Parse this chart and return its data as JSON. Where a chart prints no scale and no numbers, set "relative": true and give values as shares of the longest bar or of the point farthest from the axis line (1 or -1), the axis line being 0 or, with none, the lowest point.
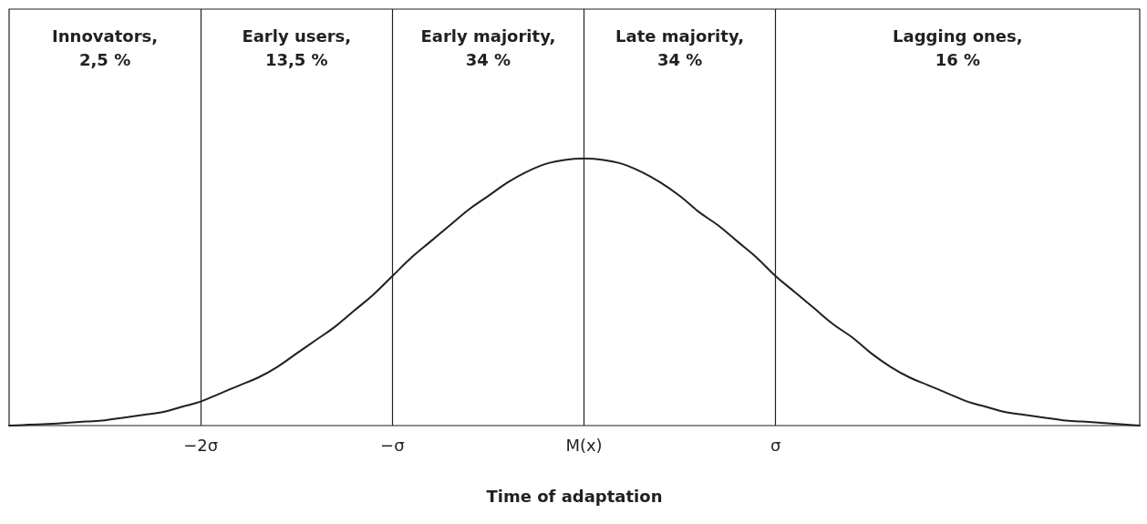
{
  "chart_data": {
    "type": "line",
    "xlabel": "Time of adaptation",
    "relative": true,
    "marker": "none",
    "line_style": "solid",
    "categories": [
      null,
      null,
      null,
      null,
      null,
      null,
      null,
      null,
      null,
      null,
      "−2σ",
      null,
      null,
      null,
      null,
      null,
      null,
      null,
      null,
      null,
      "−σ",
      null,
      null,
      null,
      null,
      null,
      null,
      null,
      null,
      null,
      "M(x)",
      null,
      null,
      null,
      null,
      null,
      null,
      null,
      null,
      null,
      "σ",
      null,
      null,
      null,
      null,
      null,
      null,
      null,
      null,
      null,
      null,
      null,
      null,
      null,
      null,
      null,
      null,
      null,
      null,
      null
    ],
    "series": [
      {
        "color": "#231f20",
        "values": [
          0,
          0.003,
          0.006,
          0.01,
          0.015,
          0.02,
          0.03,
          0.04,
          0.05,
          0.07,
          0.09,
          0.12,
          0.15,
          0.18,
          0.22,
          0.27,
          0.32,
          0.37,
          0.43,
          0.49,
          0.56,
          0.63,
          0.69,
          0.75,
          0.81,
          0.86,
          0.91,
          0.95,
          0.98,
          0.995,
          1,
          0.995,
          0.98,
          0.95,
          0.91,
          0.86,
          0.8,
          0.75,
          0.69,
          0.63,
          0.56,
          0.5,
          0.44,
          0.38,
          0.33,
          0.27,
          0.22,
          0.18,
          0.15,
          0.12,
          0.09,
          0.07,
          0.05,
          0.04,
          0.03,
          0.02,
          0.015,
          0.01,
          0.005,
          0
        ]
      }
    ],
    "ref_lines": [
      {
        "axis": "x",
        "value": "−2σ"
      },
      {
        "axis": "x",
        "value": "−σ"
      },
      {
        "axis": "x",
        "value": "M(x)"
      },
      {
        "axis": "x",
        "value": "σ"
      }
    ],
    "annotations": [
      "Innovators,\n2,5 %",
      "Early users,\n13,5 %",
      "Early majority,\n34 %",
      "Late majority,\n34 %",
      "Lagging ones,\n16 %"
    ]
  }
}
